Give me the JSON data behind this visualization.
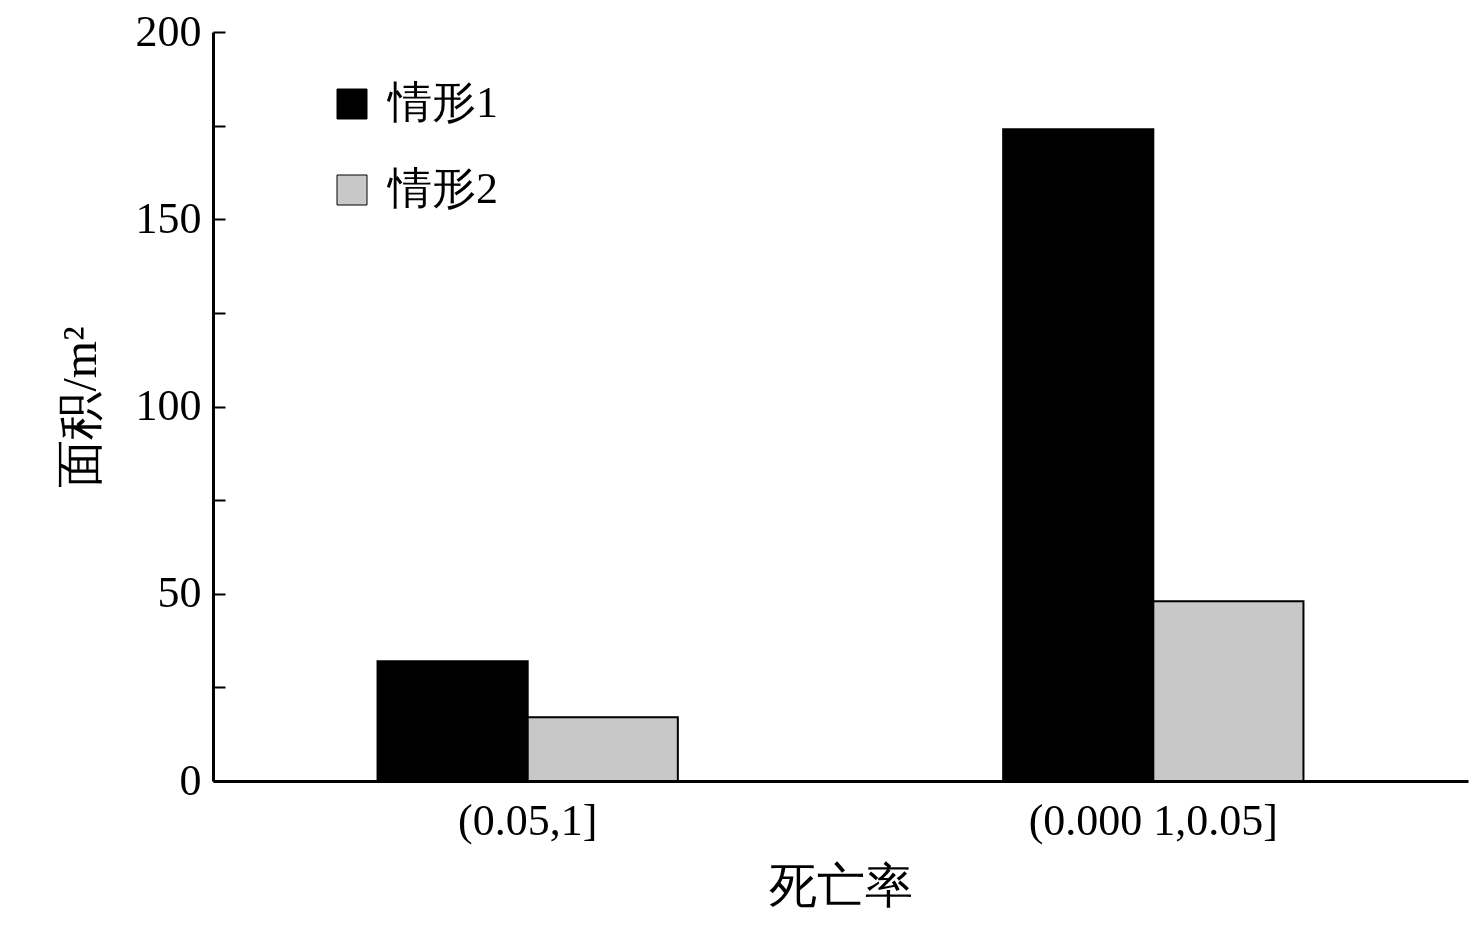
{
  "chart_data": {
    "type": "bar",
    "xlabel": "死亡率",
    "ylabel": "面积/m²",
    "categories": [
      "(0.05,1]",
      "(0.000 1,0.05]"
    ],
    "series": [
      {
        "name": "情形1",
        "color": "#000000",
        "values": [
          32,
          174
        ]
      },
      {
        "name": "情形2",
        "color": "#c8c8c8",
        "values": [
          17,
          48
        ]
      }
    ],
    "ylim": [
      0,
      200
    ],
    "yticks": [
      0,
      {
        "value": 25,
        "label": null
      },
      50,
      {
        "value": 75,
        "label": null
      },
      100,
      {
        "value": 125,
        "label": null
      },
      150,
      {
        "value": 175,
        "label": null
      },
      200
    ],
    "grid": false,
    "legend": "top left"
  }
}
